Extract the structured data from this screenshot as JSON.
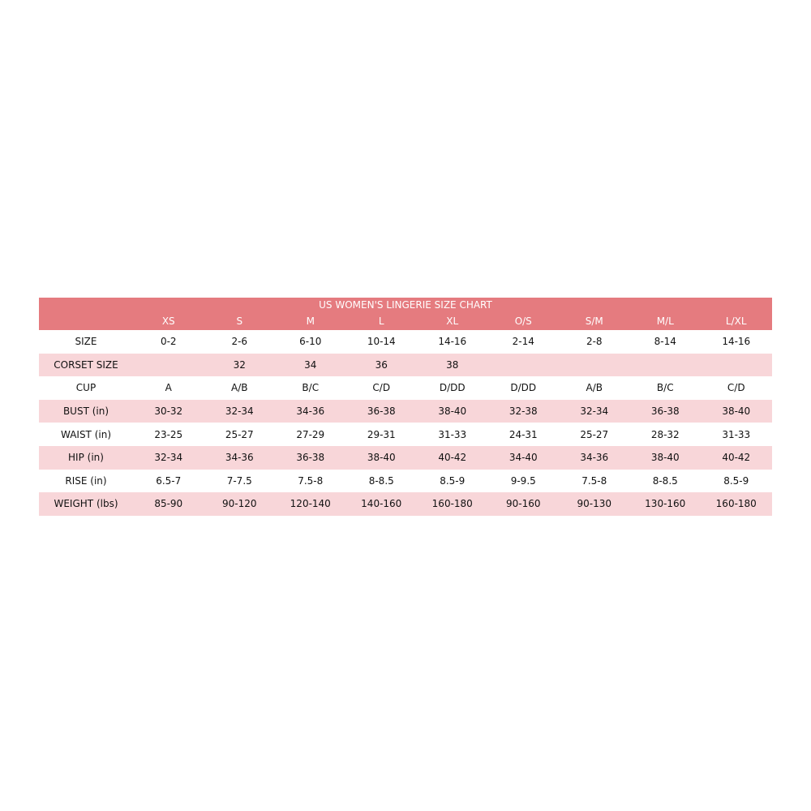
{
  "title": "US WOMEN'S LINGERIE SIZE CHART",
  "colors": {
    "header": "#E57B7F",
    "stripe": "#F8D6D9"
  },
  "columns": [
    "XS",
    "S",
    "M",
    "L",
    "XL",
    "O/S",
    "S/M",
    "M/L",
    "L/XL"
  ],
  "rows": [
    {
      "label": "SIZE",
      "values": [
        "0-2",
        "2-6",
        "6-10",
        "10-14",
        "14-16",
        "2-14",
        "2-8",
        "8-14",
        "14-16"
      ]
    },
    {
      "label": "CORSET SIZE",
      "values": [
        "",
        "32",
        "34",
        "36",
        "38",
        "",
        "",
        "",
        ""
      ]
    },
    {
      "label": "CUP",
      "values": [
        "A",
        "A/B",
        "B/C",
        "C/D",
        "D/DD",
        "D/DD",
        "A/B",
        "B/C",
        "C/D"
      ]
    },
    {
      "label": "BUST (in)",
      "values": [
        "30-32",
        "32-34",
        "34-36",
        "36-38",
        "38-40",
        "32-38",
        "32-34",
        "36-38",
        "38-40"
      ]
    },
    {
      "label": "WAIST (in)",
      "values": [
        "23-25",
        "25-27",
        "27-29",
        "29-31",
        "31-33",
        "24-31",
        "25-27",
        "28-32",
        "31-33"
      ]
    },
    {
      "label": "HIP (in)",
      "values": [
        "32-34",
        "34-36",
        "36-38",
        "38-40",
        "40-42",
        "34-40",
        "34-36",
        "38-40",
        "40-42"
      ]
    },
    {
      "label": "RISE (in)",
      "values": [
        "6.5-7",
        "7-7.5",
        "7.5-8",
        "8-8.5",
        "8.5-9",
        "9-9.5",
        "7.5-8",
        "8-8.5",
        "8.5-9"
      ]
    },
    {
      "label": "WEIGHT (lbs)",
      "values": [
        "85-90",
        "90-120",
        "120-140",
        "140-160",
        "160-180",
        "90-160",
        "90-130",
        "130-160",
        "160-180"
      ]
    }
  ]
}
